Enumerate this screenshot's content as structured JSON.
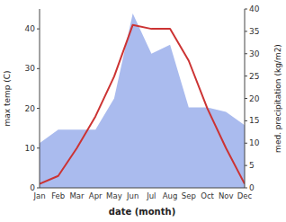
{
  "chart_data": {
    "type": "line",
    "xlabel": "date (month)",
    "ylabel": "max temp (C)",
    "y2label": "med. precipitation (kg/m2)",
    "categories": [
      "Jan",
      "Feb",
      "Mar",
      "Apr",
      "May",
      "Jun",
      "Jul",
      "Aug",
      "Sep",
      "Oct",
      "Nov",
      "Dec"
    ],
    "series": [
      {
        "type": "area",
        "axis": "y2",
        "color": "#aabbee",
        "values": [
          10,
          13,
          13,
          13,
          20,
          39,
          30,
          32,
          18,
          18,
          17,
          14
        ]
      },
      {
        "type": "line",
        "color": "#cc3333",
        "values": [
          1,
          3,
          10,
          18,
          28,
          41,
          40,
          40,
          32,
          20,
          10,
          1
        ]
      }
    ],
    "ylim": [
      0,
      45
    ],
    "yticks": [
      0,
      10,
      20,
      30,
      40
    ],
    "y2lim": [
      0,
      40
    ],
    "y2ticks": [
      0,
      5,
      10,
      15,
      20,
      25,
      30,
      35,
      40
    ],
    "grid": false
  }
}
